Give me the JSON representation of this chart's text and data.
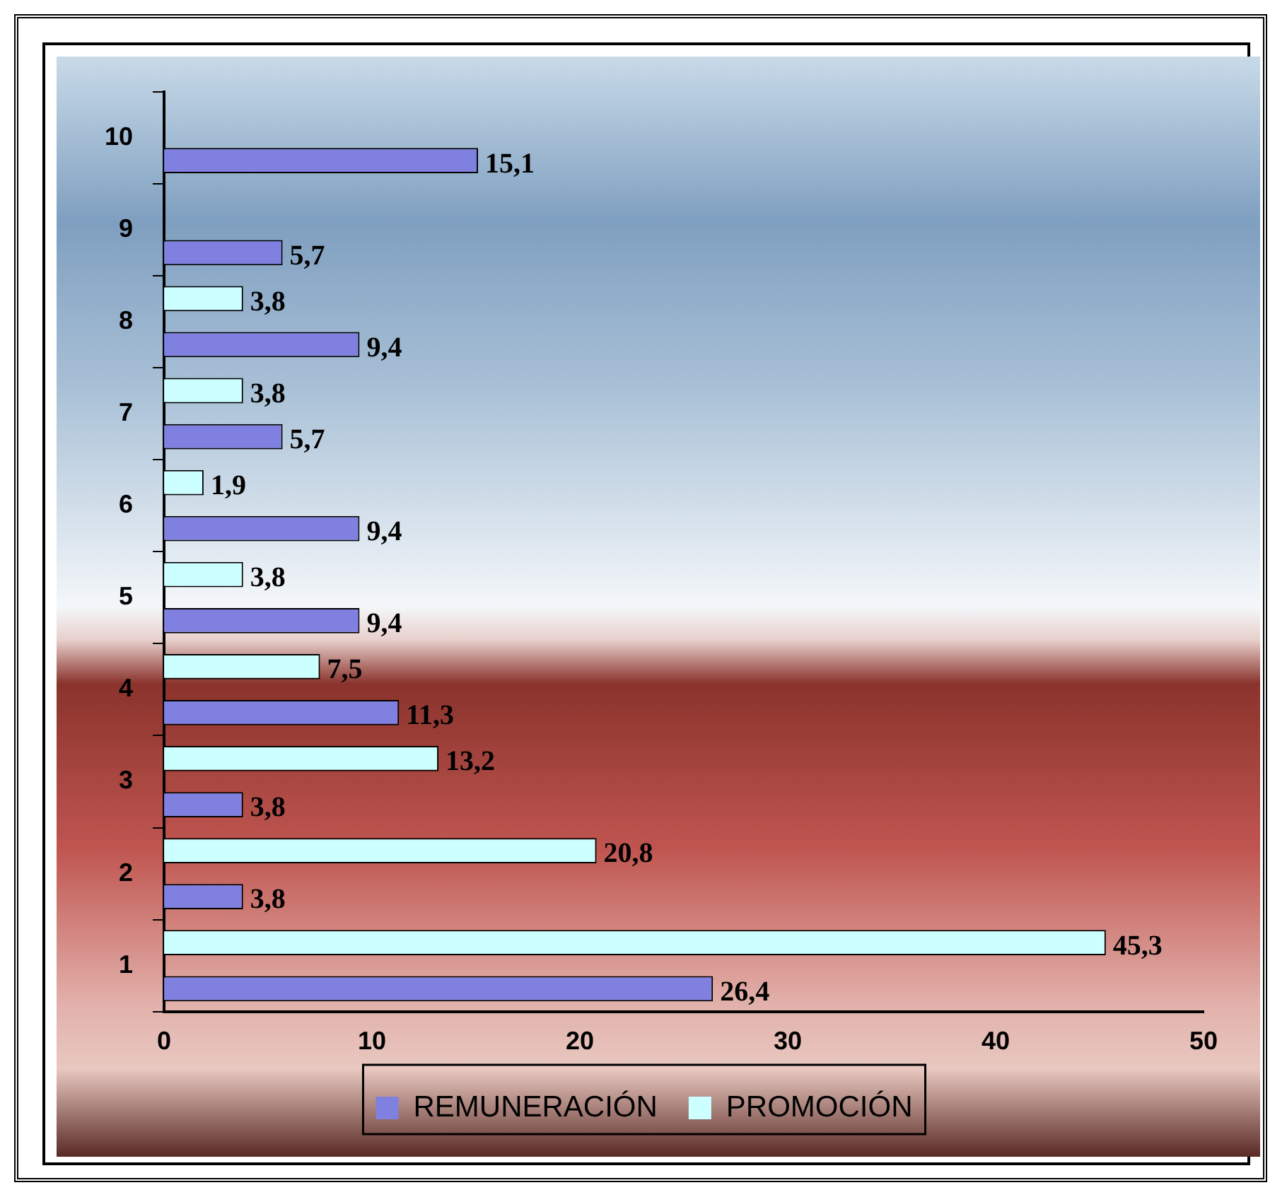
{
  "chart_data": {
    "type": "bar",
    "orientation": "horizontal",
    "categories": [
      "10",
      "9",
      "8",
      "7",
      "6",
      "5",
      "4",
      "3",
      "2",
      "1"
    ],
    "series": [
      {
        "name": "REMUNERACIÓN",
        "color": "#8080e0",
        "values": [
          15.1,
          5.7,
          9.4,
          5.7,
          9.4,
          9.4,
          11.3,
          3.8,
          3.8,
          26.4
        ],
        "value_labels": [
          "15,1",
          "5,7",
          "9,4",
          "5,7",
          "9,4",
          "9,4",
          "11,3",
          "3,8",
          "3,8",
          "26,4"
        ]
      },
      {
        "name": "PROMOCIÓN",
        "color": "#ccffff",
        "values": [
          null,
          null,
          3.8,
          3.8,
          1.9,
          3.8,
          7.5,
          13.2,
          20.8,
          45.3
        ],
        "value_labels": [
          null,
          null,
          "3,8",
          "3,8",
          "1,9",
          "3,8",
          "7,5",
          "13,2",
          "20,8",
          "45,3"
        ]
      }
    ],
    "xlim": [
      0,
      50
    ],
    "xticks": [
      0,
      10,
      20,
      30,
      40,
      50
    ],
    "grid": false,
    "legend": "bottom"
  }
}
